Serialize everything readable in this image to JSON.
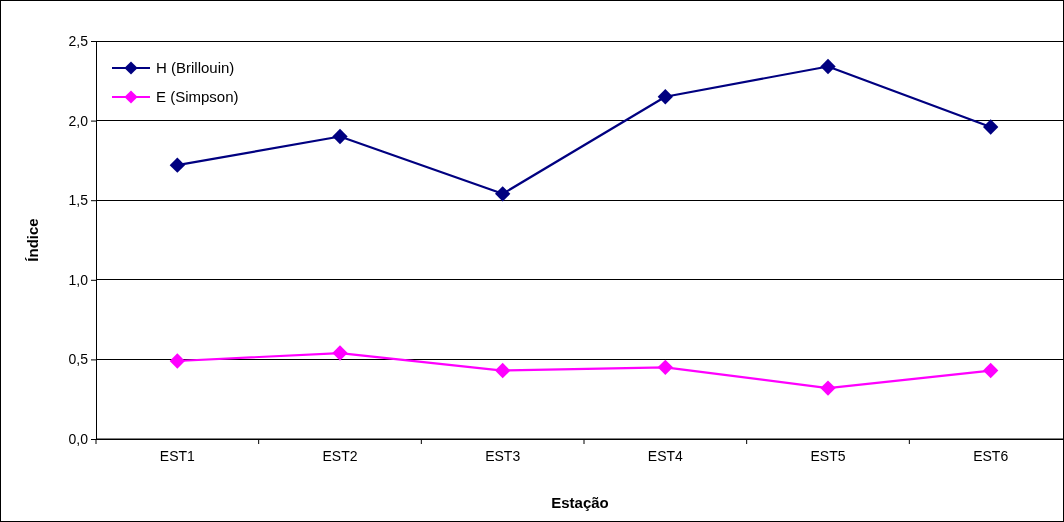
{
  "chart_data": {
    "type": "line",
    "xlabel": "Estação",
    "ylabel": "Índice",
    "categories": [
      "EST1",
      "EST2",
      "EST3",
      "EST4",
      "EST5",
      "EST6"
    ],
    "series": [
      {
        "name": "H (Brillouin)",
        "color": "#000080",
        "values": [
          1.72,
          1.9,
          1.54,
          2.15,
          2.34,
          1.96
        ]
      },
      {
        "name": "E (Simpson)",
        "color": "#ff00ff",
        "values": [
          0.49,
          0.54,
          0.43,
          0.45,
          0.32,
          0.43
        ]
      }
    ],
    "ylim": [
      0,
      2.5
    ],
    "yticks": [
      {
        "value": 0,
        "label": "0,0"
      },
      {
        "value": 0.5,
        "label": "0,5"
      },
      {
        "value": 1,
        "label": "1,0"
      },
      {
        "value": 1.5,
        "label": "1,5"
      },
      {
        "value": 2,
        "label": "2,0"
      },
      {
        "value": 2.5,
        "label": "2,5"
      }
    ],
    "grid": "y",
    "legend": "top left",
    "marker": "diamond",
    "line_style": "solid"
  }
}
